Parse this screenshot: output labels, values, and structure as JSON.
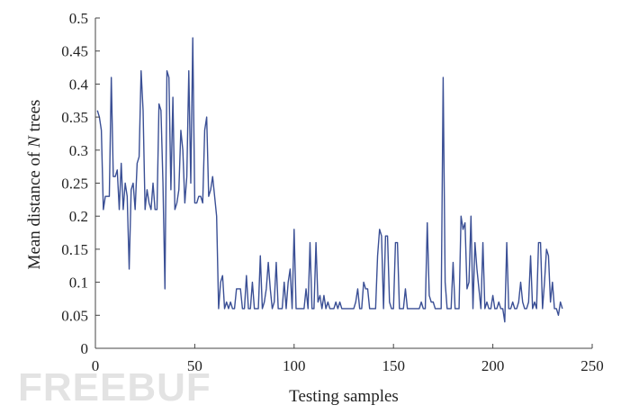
{
  "watermark": "FREEBUF",
  "chart_data": {
    "type": "line",
    "xlabel": "Testing samples",
    "ylabel_prefix": "Mean distance of ",
    "ylabel_italic": "N",
    "ylabel_suffix": " trees",
    "xlim": [
      0,
      250
    ],
    "ylim": [
      0,
      0.5
    ],
    "xticks": [
      0,
      50,
      100,
      150,
      200,
      250
    ],
    "yticks": [
      0,
      0.05,
      0.1,
      0.15,
      0.2,
      0.25,
      0.3,
      0.35,
      0.4,
      0.45,
      0.5
    ],
    "xtick_labels": [
      "0",
      "50",
      "100",
      "150",
      "200",
      "250"
    ],
    "ytick_labels": [
      "0",
      "0.05",
      "0.1",
      "0.15",
      "0.2",
      "0.25",
      "0.3",
      "0.35",
      "0.4",
      "0.45",
      "0.5"
    ],
    "grid": false,
    "series": [
      {
        "color": "#3a4f95",
        "y": [
          0.36,
          0.35,
          0.33,
          0.21,
          0.23,
          0.23,
          0.23,
          0.41,
          0.26,
          0.26,
          0.27,
          0.21,
          0.28,
          0.21,
          0.25,
          0.23,
          0.12,
          0.24,
          0.25,
          0.21,
          0.28,
          0.29,
          0.42,
          0.36,
          0.21,
          0.24,
          0.22,
          0.21,
          0.25,
          0.21,
          0.21,
          0.37,
          0.36,
          0.25,
          0.09,
          0.42,
          0.41,
          0.24,
          0.38,
          0.21,
          0.22,
          0.24,
          0.33,
          0.3,
          0.22,
          0.26,
          0.42,
          0.25,
          0.47,
          0.22,
          0.22,
          0.23,
          0.23,
          0.22,
          0.33,
          0.35,
          0.23,
          0.24,
          0.26,
          0.23,
          0.2,
          0.06,
          0.1,
          0.11,
          0.06,
          0.07,
          0.06,
          0.07,
          0.06,
          0.06,
          0.09,
          0.09,
          0.09,
          0.06,
          0.06,
          0.11,
          0.06,
          0.06,
          0.1,
          0.06,
          0.06,
          0.06,
          0.14,
          0.06,
          0.07,
          0.09,
          0.13,
          0.09,
          0.06,
          0.07,
          0.13,
          0.06,
          0.06,
          0.06,
          0.1,
          0.06,
          0.1,
          0.12,
          0.06,
          0.18,
          0.06,
          0.06,
          0.06,
          0.06,
          0.06,
          0.09,
          0.06,
          0.16,
          0.06,
          0.06,
          0.16,
          0.07,
          0.08,
          0.06,
          0.08,
          0.06,
          0.07,
          0.06,
          0.06,
          0.06,
          0.07,
          0.06,
          0.07,
          0.06,
          0.06,
          0.06,
          0.06,
          0.06,
          0.06,
          0.06,
          0.07,
          0.09,
          0.06,
          0.06,
          0.1,
          0.09,
          0.09,
          0.06,
          0.06,
          0.06,
          0.06,
          0.14,
          0.18,
          0.17,
          0.06,
          0.17,
          0.17,
          0.07,
          0.06,
          0.06,
          0.16,
          0.16,
          0.06,
          0.06,
          0.06,
          0.09,
          0.06,
          0.06,
          0.06,
          0.06,
          0.06,
          0.06,
          0.06,
          0.07,
          0.06,
          0.06,
          0.19,
          0.08,
          0.07,
          0.07,
          0.06,
          0.06,
          0.06,
          0.06,
          0.41,
          0.1,
          0.06,
          0.06,
          0.06,
          0.13,
          0.06,
          0.06,
          0.06,
          0.2,
          0.18,
          0.19,
          0.09,
          0.1,
          0.2,
          0.06,
          0.16,
          0.12,
          0.09,
          0.06,
          0.16,
          0.06,
          0.07,
          0.06,
          0.06,
          0.08,
          0.06,
          0.06,
          0.07,
          0.06,
          0.06,
          0.04,
          0.16,
          0.06,
          0.06,
          0.07,
          0.06,
          0.06,
          0.07,
          0.1,
          0.07,
          0.06,
          0.06,
          0.07,
          0.14,
          0.06,
          0.07,
          0.06,
          0.16,
          0.16,
          0.06,
          0.1,
          0.15,
          0.14,
          0.07,
          0.1,
          0.06,
          0.06,
          0.05,
          0.07,
          0.06
        ]
      }
    ]
  }
}
